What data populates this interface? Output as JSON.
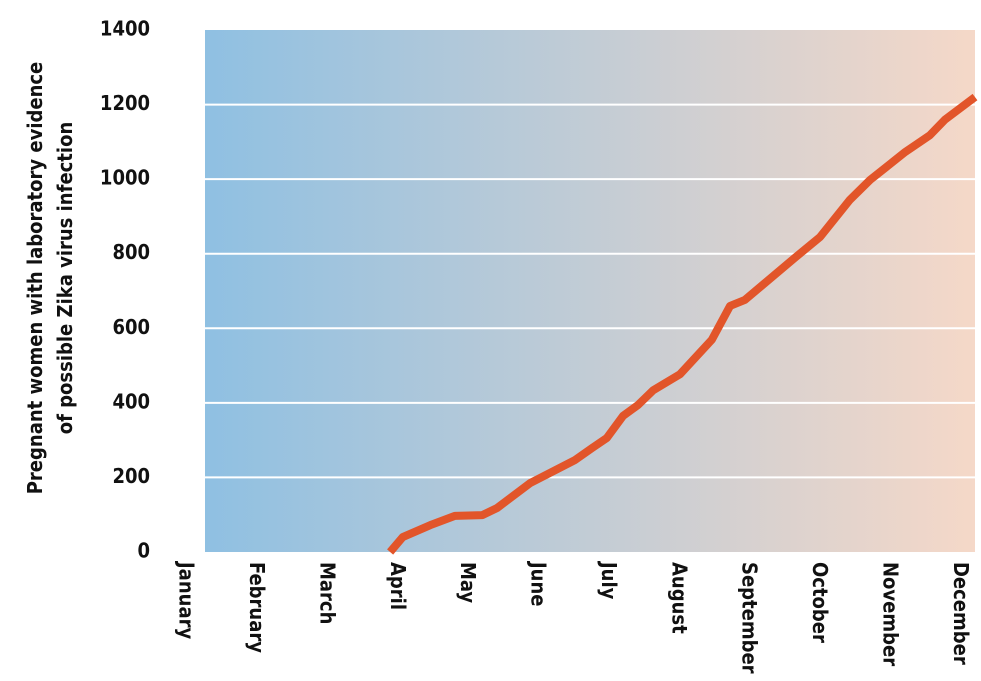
{
  "chart_data": {
    "type": "line",
    "ylabel": [
      "Pregnant women with laboratory evidence",
      "of possible Zika virus infection"
    ],
    "x": [
      2.77,
      2.95,
      3.34,
      3.69,
      4.08,
      4.29,
      4.76,
      5.4,
      5.64,
      5.85,
      6.08,
      6.29,
      6.51,
      6.89,
      7.34,
      7.6,
      7.81,
      8.52,
      8.88,
      9.3,
      9.59,
      10.09,
      10.44,
      10.65,
      11.08
    ],
    "series": [
      {
        "color": "#e2552a",
        "values": [
          0,
          40,
          72,
          97,
          99,
          118,
          185,
          247,
          279,
          306,
          365,
          394,
          434,
          477,
          569,
          660,
          676,
          789,
          845,
          944,
          998,
          1073,
          1118,
          1159,
          1220
        ]
      }
    ],
    "xlim": [
      0.14,
      11.08
    ],
    "xticks": [
      {
        "value": 0,
        "label": "January"
      },
      {
        "value": 1,
        "label": "February"
      },
      {
        "value": 2,
        "label": "March"
      },
      {
        "value": 3,
        "label": "April"
      },
      {
        "value": 4,
        "label": "May"
      },
      {
        "value": 5,
        "label": "June"
      },
      {
        "value": 6,
        "label": "July"
      },
      {
        "value": 7,
        "label": "August"
      },
      {
        "value": 8,
        "label": "September"
      },
      {
        "value": 9,
        "label": "October"
      },
      {
        "value": 10,
        "label": "November"
      },
      {
        "value": 11,
        "label": "December"
      }
    ],
    "ylim": [
      0,
      1400
    ],
    "yticks": [
      0,
      200,
      400,
      600,
      800,
      1000,
      1200,
      1400
    ],
    "grid": true,
    "background": [
      "#8fc0e2",
      "#f5d8c8"
    ]
  }
}
